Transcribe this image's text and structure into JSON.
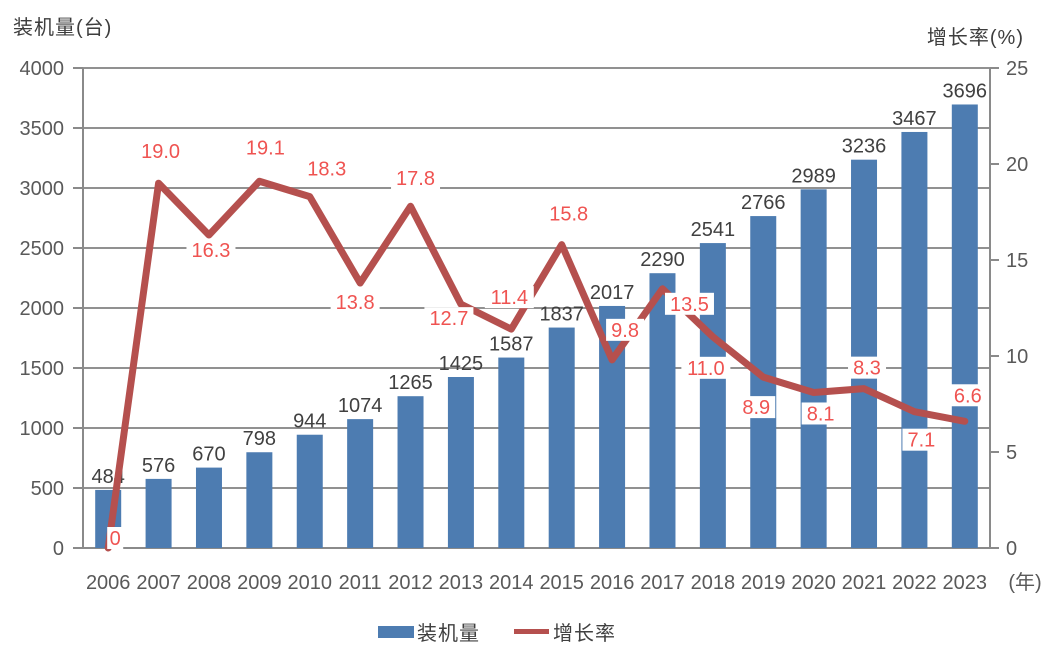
{
  "chart_data": {
    "type": "bar+line",
    "categories": [
      "2006",
      "2007",
      "2008",
      "2009",
      "2010",
      "2011",
      "2012",
      "2013",
      "2014",
      "2015",
      "2016",
      "2017",
      "2018",
      "2019",
      "2020",
      "2021",
      "2022",
      "2023"
    ],
    "series": [
      {
        "name": "装机量",
        "type": "bar",
        "axis": "left",
        "color": "#4d7cb1",
        "values": [
          484,
          576,
          670,
          798,
          944,
          1074,
          1265,
          1425,
          1587,
          1837,
          2017,
          2290,
          2541,
          2766,
          2989,
          3236,
          3467,
          3696
        ],
        "value_labels": [
          "484",
          "576",
          "670",
          "798",
          "944",
          "1074",
          "1265",
          "1425",
          "1587",
          "1837",
          "2017",
          "2290",
          "2541",
          "2766",
          "2989",
          "3236",
          "3467",
          "3696"
        ]
      },
      {
        "name": "增长率",
        "type": "line",
        "axis": "right",
        "color": "#b5504e",
        "values": [
          0,
          19.0,
          16.3,
          19.1,
          18.3,
          13.8,
          17.8,
          12.7,
          11.4,
          15.8,
          9.8,
          13.5,
          11.0,
          8.9,
          8.1,
          8.3,
          7.1,
          6.6
        ],
        "value_labels": [
          "0",
          "19.0",
          "16.3",
          "19.1",
          "18.3",
          "13.8",
          "17.8",
          "12.7",
          "11.4",
          "15.8",
          "9.8",
          "13.5",
          "11.0",
          "8.9",
          "8.1",
          "8.3",
          "7.1",
          "6.6"
        ],
        "label_offsets": [
          [
            7,
            -10
          ],
          [
            2,
            -32
          ],
          [
            2,
            15
          ],
          [
            6,
            -34
          ],
          [
            17,
            -28
          ],
          [
            -5,
            19
          ],
          [
            5,
            -28
          ],
          [
            -12,
            14
          ],
          [
            -2,
            -32
          ],
          [
            7,
            -31
          ],
          [
            13,
            -30
          ],
          [
            27,
            15
          ],
          [
            -7,
            31
          ],
          [
            -7,
            30
          ],
          [
            7,
            21
          ],
          [
            3,
            -21
          ],
          [
            7,
            28
          ],
          [
            3,
            -26
          ]
        ]
      }
    ],
    "left_axis": {
      "title": "装机量(台)",
      "min": 0,
      "max": 4000,
      "step": 500,
      "tick_labels": [
        "0",
        "500",
        "1000",
        "1500",
        "2000",
        "2500",
        "3000",
        "3500",
        "4000"
      ]
    },
    "right_axis": {
      "title": "增长率(%)",
      "min": 0,
      "max": 25,
      "step": 5,
      "tick_labels": [
        "0",
        "5",
        "10",
        "15",
        "20",
        "25"
      ]
    },
    "x_axis": {
      "unit_label": "(年)"
    },
    "legend": {
      "position": "bottom-center",
      "items": [
        {
          "label": "装机量",
          "swatch": "bar",
          "color": "#4d7cb1"
        },
        {
          "label": "增长率",
          "swatch": "line",
          "color": "#b5504e"
        }
      ]
    },
    "grid": "horizontal-on",
    "colors": {
      "bar": "#4d7cb1",
      "line": "#b5504e",
      "line_value_label": "#ef5351",
      "bar_value_label": "#404040",
      "tick_label": "#595959",
      "grid_line": "#919191",
      "axis_line": "#8a8a8a",
      "background": "#ffffff"
    }
  }
}
